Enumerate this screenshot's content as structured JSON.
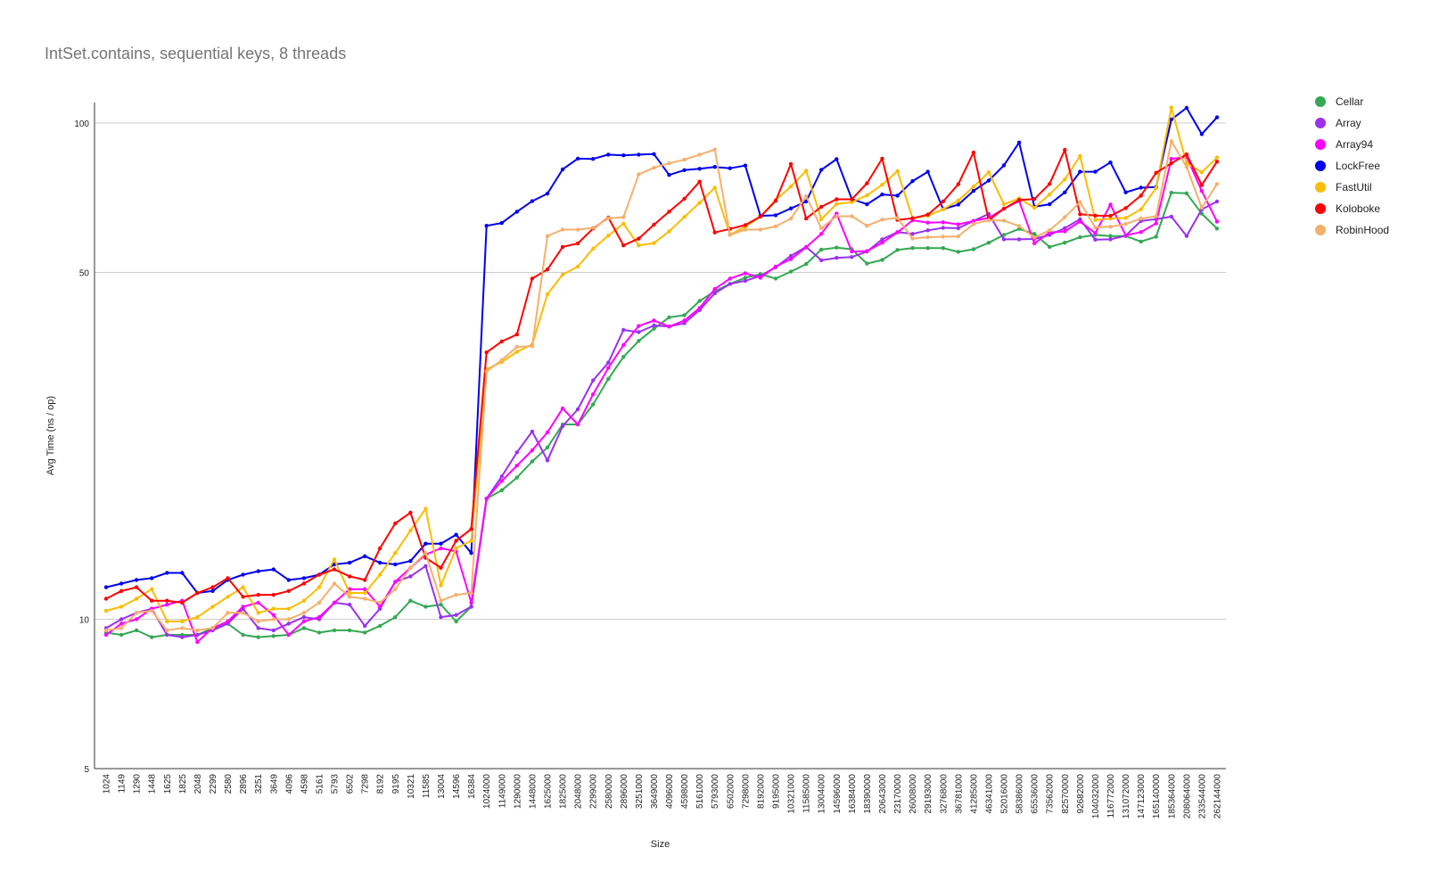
{
  "chart_data": {
    "type": "line",
    "title": "IntSet.contains, sequential keys, 8 threads",
    "xlabel": "Size",
    "ylabel": "Avg Time (ns / op)",
    "yscale": "log",
    "ylim": [
      5,
      110
    ],
    "yticks": [
      5,
      10,
      50,
      100
    ],
    "grid": true,
    "legend_position": "right",
    "categories": [
      "1024",
      "1149",
      "1290",
      "1448",
      "1625",
      "1825",
      "2048",
      "2299",
      "2580",
      "2896",
      "3251",
      "3649",
      "4096",
      "4598",
      "5161",
      "5793",
      "6502",
      "7298",
      "8192",
      "9195",
      "10321",
      "11585",
      "13004",
      "14596",
      "16384",
      "1024000",
      "1149000",
      "1290000",
      "1448000",
      "1625000",
      "1825000",
      "2048000",
      "2299000",
      "2580000",
      "2896000",
      "3251000",
      "3649000",
      "4096000",
      "4598000",
      "5161000",
      "5793000",
      "6502000",
      "7298000",
      "8192000",
      "9195000",
      "10321000",
      "11585000",
      "13004000",
      "14596000",
      "16384000",
      "18390000",
      "20643000",
      "23170000",
      "26008000",
      "29193000",
      "32768000",
      "36781000",
      "41285000",
      "46341000",
      "52016000",
      "58386000",
      "65536000",
      "73562000",
      "82570000",
      "92682000",
      "104032000",
      "116772000",
      "131072000",
      "147123000",
      "165140000",
      "185364000",
      "208064000",
      "233544000",
      "262144000"
    ],
    "series": [
      {
        "name": "Cellar",
        "color": "#34a853",
        "values": [
          9.4,
          9.3,
          9.5,
          9.2,
          9.3,
          9.3,
          9.3,
          9.6,
          9.8,
          9.3,
          9.2,
          9.25,
          9.3,
          9.6,
          9.4,
          9.5,
          9.5,
          9.4,
          9.7,
          10.1,
          10.9,
          10.6,
          10.7,
          9.9,
          10.6,
          17.5,
          18.2,
          19.3,
          20.8,
          22.2,
          24.7,
          24.7,
          27.1,
          30.5,
          33.8,
          36.4,
          38.5,
          40.6,
          41.0,
          43.8,
          45.8,
          47.4,
          48.8,
          49.6,
          48.6,
          50.2,
          52.0,
          55.6,
          56.1,
          55.7,
          52.1,
          53.0,
          55.5,
          56.0,
          56.0,
          56.0,
          55.0,
          55.7,
          57.4,
          59.5,
          61.2,
          59.8,
          56.3,
          57.4,
          58.9,
          59.5,
          59.2,
          59.2,
          57.7,
          59.0,
          72.4,
          72.2,
          65.7,
          61.3
        ]
      },
      {
        "name": "Array",
        "color": "#9b30f0",
        "values": [
          9.6,
          10.0,
          10.3,
          10.5,
          9.3,
          9.2,
          9.3,
          9.5,
          9.8,
          10.5,
          9.6,
          9.5,
          9.8,
          10.1,
          10.0,
          10.8,
          10.7,
          9.7,
          10.5,
          11.9,
          12.2,
          12.8,
          10.1,
          10.2,
          10.6,
          17.5,
          19.4,
          21.7,
          23.9,
          20.9,
          24.5,
          26.5,
          30.3,
          32.9,
          38.3,
          37.9,
          39.1,
          38.9,
          39.5,
          42.0,
          45.4,
          47.4,
          48.1,
          49.2,
          51.2,
          54.0,
          56.3,
          52.9,
          53.5,
          53.7,
          55.1,
          58.3,
          60.3,
          59.8,
          60.8,
          61.5,
          61.4,
          63.5,
          65.6,
          58.3,
          58.3,
          58.4,
          59.5,
          61.4,
          64.0,
          58.2,
          58.3,
          59.3,
          63.5,
          64.0,
          64.8,
          59.2,
          67.0,
          69.5
        ]
      },
      {
        "name": "Array94",
        "color": "#ff00ff",
        "values": [
          9.3,
          9.8,
          10.0,
          10.5,
          10.7,
          10.9,
          9.0,
          9.6,
          9.9,
          10.6,
          10.8,
          10.2,
          9.3,
          9.9,
          10.1,
          10.8,
          11.5,
          11.5,
          10.6,
          11.9,
          12.7,
          13.5,
          13.9,
          13.7,
          10.8,
          17.5,
          19.0,
          20.4,
          21.9,
          23.8,
          26.6,
          24.7,
          28.4,
          32.1,
          35.7,
          39.0,
          40.0,
          38.9,
          40.0,
          42.4,
          46.3,
          48.6,
          49.8,
          48.8,
          51.4,
          53.2,
          56.2,
          59.8,
          65.7,
          55.1,
          55.2,
          57.4,
          60.2,
          63.7,
          63.0,
          63.1,
          62.5,
          63.5,
          64.4,
          67.2,
          69.7,
          57.2,
          60.2,
          60.5,
          63.3,
          60.0,
          68.5,
          59.4,
          60.3,
          62.8,
          84.7,
          85.5,
          73.0,
          63.3
        ]
      },
      {
        "name": "LockFree",
        "color": "#0000ee",
        "values": [
          11.6,
          11.8,
          12.0,
          12.1,
          12.4,
          12.4,
          11.3,
          11.4,
          12.0,
          12.3,
          12.5,
          12.6,
          12.0,
          12.1,
          12.3,
          12.9,
          13.0,
          13.4,
          13.0,
          12.9,
          13.1,
          14.2,
          14.2,
          14.8,
          13.6,
          62.1,
          62.9,
          66.3,
          69.6,
          72.1,
          80.7,
          84.8,
          84.7,
          86.4,
          86.1,
          86.4,
          86.6,
          78.6,
          80.4,
          80.9,
          81.6,
          81.1,
          82.1,
          65.0,
          65.2,
          67.3,
          69.5,
          80.5,
          84.6,
          70.3,
          68.6,
          71.8,
          71.4,
          76.4,
          79.8,
          67.1,
          68.5,
          73.0,
          76.6,
          82.2,
          91.4,
          67.8,
          68.6,
          72.5,
          79.8,
          79.8,
          83.3,
          72.5,
          74.1,
          74.3,
          101.7,
          107.3,
          95.0,
          102.7
        ]
      },
      {
        "name": "FastUtil",
        "color": "#fbbc04",
        "values": [
          10.4,
          10.6,
          11.0,
          11.5,
          9.9,
          9.9,
          10.1,
          10.6,
          11.1,
          11.6,
          10.3,
          10.5,
          10.5,
          10.9,
          11.6,
          13.2,
          11.3,
          11.3,
          12.3,
          13.6,
          15.1,
          16.7,
          11.7,
          13.9,
          14.4,
          31.9,
          33.0,
          34.6,
          35.8,
          45.2,
          49.5,
          51.4,
          55.8,
          59.3,
          62.7,
          56.7,
          57.3,
          60.5,
          64.7,
          69.1,
          74.1,
          59.6,
          61.8,
          64.8,
          70.0,
          74.5,
          80.2,
          64.0,
          68.7,
          69.3,
          71.5,
          75.1,
          80.0,
          64.3,
          65.1,
          67.0,
          69.8,
          74.4,
          79.6,
          68.6,
          70.5,
          67.5,
          71.8,
          77.0,
          85.8,
          63.8,
          64.2,
          64.4,
          67.0,
          74.0,
          107.5,
          83.0,
          79.6,
          85.2
        ]
      },
      {
        "name": "Koloboke",
        "color": "#ff0000",
        "values": [
          11.0,
          11.4,
          11.6,
          10.9,
          10.9,
          10.8,
          11.3,
          11.6,
          12.1,
          11.1,
          11.2,
          11.2,
          11.4,
          11.8,
          12.3,
          12.6,
          12.2,
          12.0,
          13.9,
          15.6,
          16.4,
          13.3,
          12.7,
          14.4,
          15.2,
          34.5,
          36.3,
          37.5,
          48.6,
          50.7,
          56.3,
          57.2,
          61.3,
          64.5,
          56.7,
          58.5,
          62.4,
          66.3,
          70.4,
          76.2,
          60.2,
          61.2,
          62.3,
          64.8,
          69.7,
          82.7,
          64.2,
          67.8,
          70.2,
          70.2,
          75.6,
          84.8,
          63.8,
          64.3,
          65.4,
          69.5,
          75.3,
          87.2,
          63.7,
          67.2,
          70.0,
          70.3,
          75.4,
          88.3,
          65.5,
          65.1,
          65.0,
          67.4,
          71.4,
          79.4,
          83.0,
          86.5,
          75.0,
          83.6
        ]
      },
      {
        "name": "RobinHood",
        "color": "#f4b06c",
        "values": [
          9.5,
          9.6,
          10.3,
          10.4,
          9.5,
          9.6,
          9.5,
          9.6,
          10.3,
          10.3,
          9.9,
          10.0,
          10.0,
          10.3,
          10.8,
          11.8,
          11.1,
          11.0,
          10.8,
          11.5,
          12.7,
          13.6,
          10.9,
          11.2,
          11.3,
          31.6,
          33.3,
          35.4,
          35.5,
          59.2,
          61.0,
          61.0,
          61.5,
          64.3,
          64.6,
          78.8,
          81.3,
          83.0,
          84.4,
          86.4,
          88.4,
          59.5,
          61.0,
          61.0,
          61.9,
          64.2,
          71.2,
          61.4,
          64.9,
          64.9,
          62.1,
          63.9,
          64.4,
          58.5,
          58.9,
          59.0,
          59.1,
          62.6,
          63.7,
          63.6,
          62.0,
          58.8,
          60.8,
          64.6,
          69.3,
          61.6,
          61.8,
          62.6,
          64.2,
          64.9,
          91.9,
          81.6,
          67.5,
          75.4
        ]
      }
    ]
  }
}
